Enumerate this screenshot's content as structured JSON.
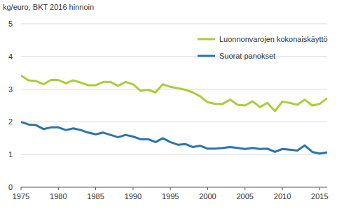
{
  "chart_data": {
    "type": "line",
    "y_label": "kg/euro, BKT 2016 hinnoin",
    "x": [
      1975,
      1976,
      1977,
      1978,
      1979,
      1980,
      1981,
      1982,
      1983,
      1984,
      1985,
      1986,
      1987,
      1988,
      1989,
      1990,
      1991,
      1992,
      1993,
      1994,
      1995,
      1996,
      1997,
      1998,
      1999,
      2000,
      2001,
      2002,
      2003,
      2004,
      2005,
      2006,
      2007,
      2008,
      2009,
      2010,
      2011,
      2012,
      2013,
      2014,
      2015,
      2016
    ],
    "series": [
      {
        "name": "Luonnonvarojen kokonaiskäyttö",
        "color": "#aacd3b",
        "values": [
          3.42,
          3.27,
          3.25,
          3.15,
          3.28,
          3.28,
          3.18,
          3.27,
          3.2,
          3.12,
          3.12,
          3.22,
          3.22,
          3.1,
          3.22,
          3.15,
          2.95,
          2.98,
          2.9,
          3.15,
          3.07,
          3.03,
          2.98,
          2.9,
          2.78,
          2.6,
          2.55,
          2.55,
          2.68,
          2.52,
          2.5,
          2.63,
          2.45,
          2.58,
          2.33,
          2.62,
          2.58,
          2.52,
          2.68,
          2.5,
          2.55,
          2.72
        ]
      },
      {
        "name": "Suorat panokset",
        "color": "#2b73ad",
        "values": [
          2.0,
          1.92,
          1.9,
          1.78,
          1.83,
          1.83,
          1.75,
          1.8,
          1.75,
          1.67,
          1.62,
          1.67,
          1.6,
          1.53,
          1.6,
          1.55,
          1.47,
          1.47,
          1.38,
          1.5,
          1.38,
          1.3,
          1.32,
          1.23,
          1.27,
          1.18,
          1.18,
          1.2,
          1.23,
          1.2,
          1.17,
          1.2,
          1.17,
          1.18,
          1.08,
          1.17,
          1.15,
          1.12,
          1.28,
          1.08,
          1.03,
          1.07
        ]
      }
    ],
    "xlim": [
      1975,
      2016
    ],
    "xticks": [
      1975,
      1980,
      1985,
      1990,
      1995,
      2000,
      2005,
      2010,
      2015
    ],
    "ylim": [
      0,
      5
    ],
    "yticks": [
      0,
      1,
      2,
      3,
      4,
      5
    ],
    "grid": true,
    "legend": "top-right"
  }
}
